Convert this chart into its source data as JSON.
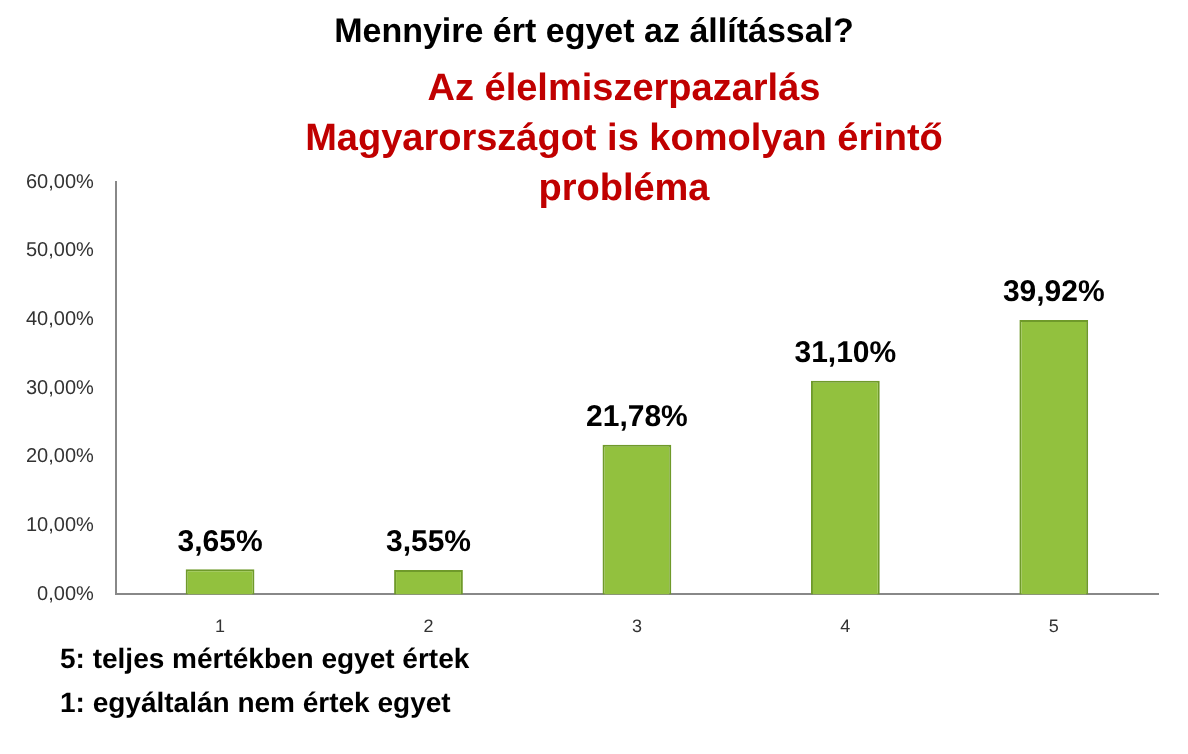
{
  "chart_data": {
    "type": "bar",
    "title": "Mennyire ért egyet az állítással?",
    "subtitle": "Az élelmiszerpazarlás Magyarországot is komolyan érintő probléma",
    "categories": [
      "1",
      "2",
      "3",
      "4",
      "5"
    ],
    "values": [
      3.65,
      3.55,
      21.78,
      31.1,
      39.92
    ],
    "value_labels": [
      "3,65%",
      "3,55%",
      "21,78%",
      "31,10%",
      "39,92%"
    ],
    "color": "#92c13e",
    "ylim": [
      0,
      60
    ],
    "yticks": [
      {
        "value": 0,
        "label": "0,00%"
      },
      {
        "value": 10,
        "label": "10,00%"
      },
      {
        "value": 20,
        "label": "20,00%"
      },
      {
        "value": 30,
        "label": "30,00%"
      },
      {
        "value": 40,
        "label": "40,00%"
      },
      {
        "value": 50,
        "label": "50,00%"
      },
      {
        "value": 60,
        "label": "60,00%"
      }
    ],
    "grid": false,
    "legend": false,
    "annotations": [
      "5: teljes mértékben egyet értek",
      "1: egyáltalán nem értek egyet"
    ]
  }
}
